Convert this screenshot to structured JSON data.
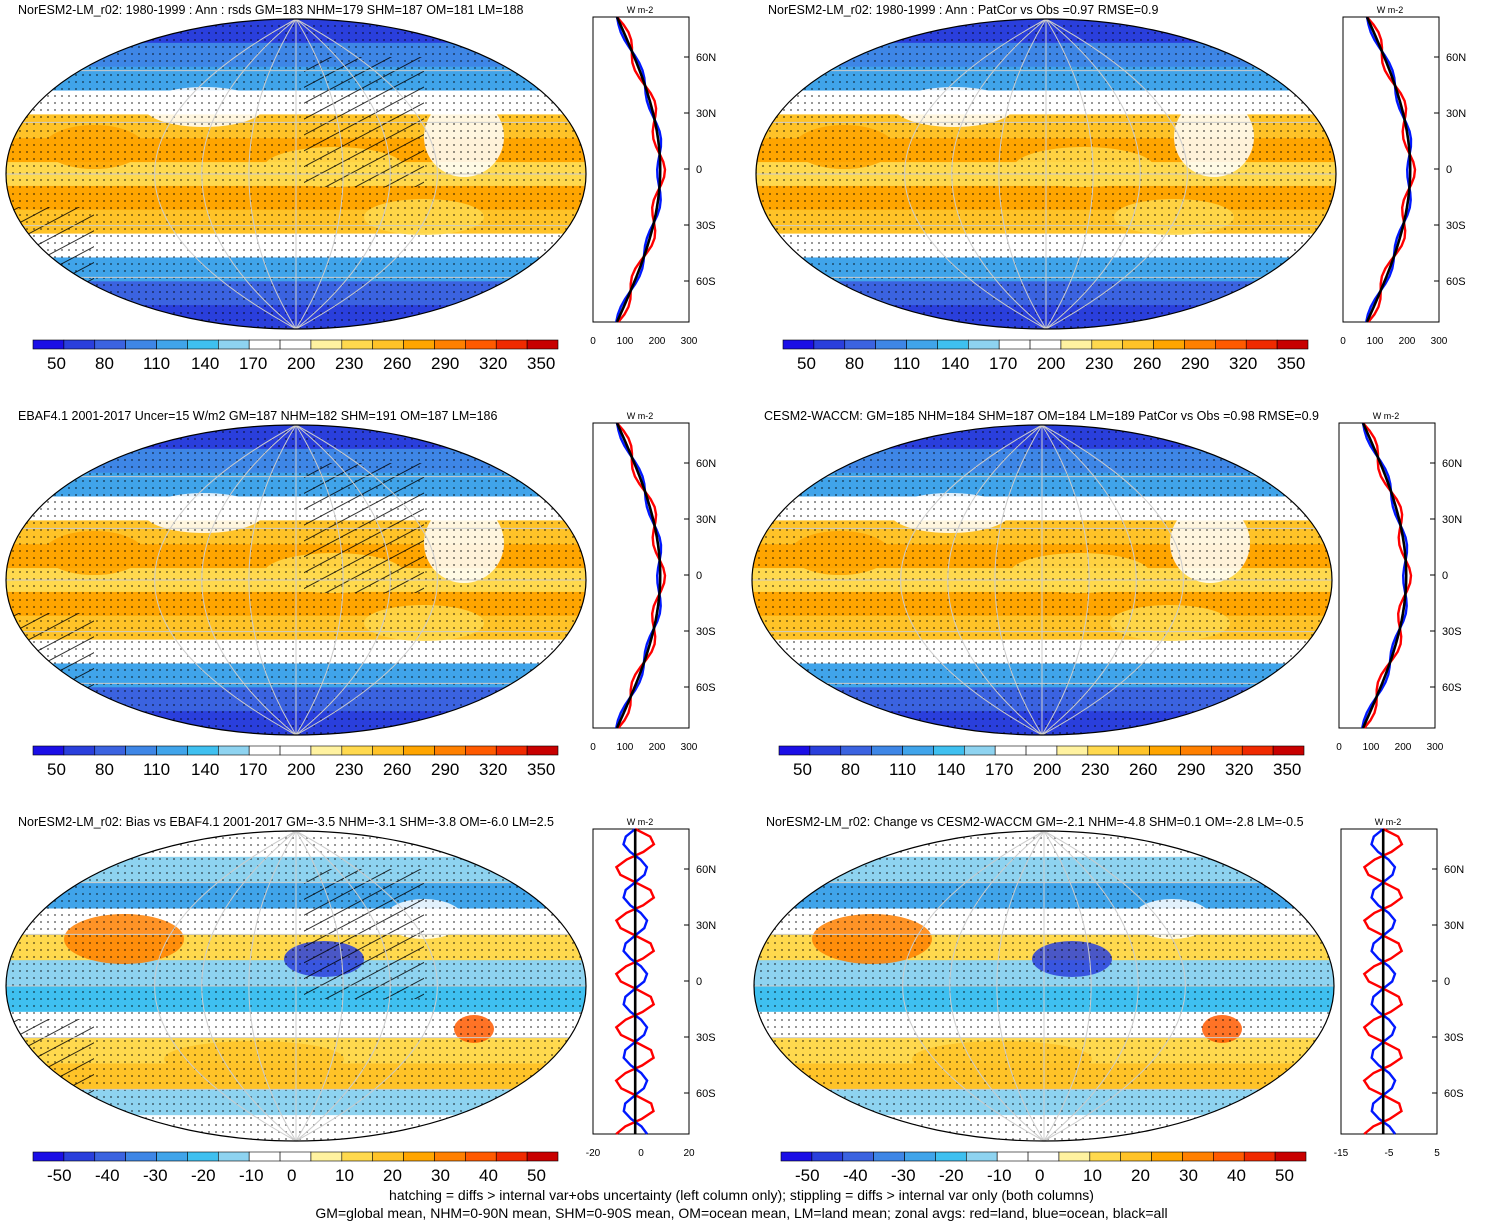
{
  "panels": [
    {
      "title": "NorESM2-LM_r02: 1980-1999 : Ann : rsds GM=183 NHM=179 SHM=187 OM=181 LM=188",
      "zonal_units": "W m-2",
      "lat_labels": [
        "60N",
        "30N",
        "0",
        "30S",
        "60S"
      ],
      "x_ticks": [
        "0",
        "100",
        "200",
        "300"
      ],
      "colorbar_labels": [
        "50",
        "80",
        "110",
        "140",
        "170",
        "200",
        "230",
        "260",
        "290",
        "320",
        "350"
      ],
      "type": "abs",
      "hatch": true
    },
    {
      "title": "NorESM2-LM_r02: 1980-1999 : Ann : PatCor vs Obs =0.97 RMSE=0.9",
      "zonal_units": "W m-2",
      "lat_labels": [
        "60N",
        "30N",
        "0",
        "30S",
        "60S"
      ],
      "x_ticks": [
        "0",
        "100",
        "200",
        "300"
      ],
      "colorbar_labels": [
        "50",
        "80",
        "110",
        "140",
        "170",
        "200",
        "230",
        "260",
        "290",
        "320",
        "350"
      ],
      "type": "abs",
      "hatch": false
    },
    {
      "title": "EBAF4.1 2001-2017 Uncer=15 W/m2 GM=187 NHM=182 SHM=191 OM=187 LM=186",
      "zonal_units": "W m-2",
      "lat_labels": [
        "60N",
        "30N",
        "0",
        "30S",
        "60S"
      ],
      "x_ticks": [
        "0",
        "100",
        "200",
        "300"
      ],
      "colorbar_labels": [
        "50",
        "80",
        "110",
        "140",
        "170",
        "200",
        "230",
        "260",
        "290",
        "320",
        "350"
      ],
      "type": "abs",
      "hatch": true
    },
    {
      "title": "CESM2-WACCM: GM=185 NHM=184 SHM=187 OM=184 LM=189 PatCor vs Obs =0.98 RMSE=0.9",
      "zonal_units": "W m-2",
      "lat_labels": [
        "60N",
        "30N",
        "0",
        "30S",
        "60S"
      ],
      "x_ticks": [
        "0",
        "100",
        "200",
        "300"
      ],
      "colorbar_labels": [
        "50",
        "80",
        "110",
        "140",
        "170",
        "200",
        "230",
        "260",
        "290",
        "320",
        "350"
      ],
      "type": "abs",
      "hatch": false
    },
    {
      "title": "NorESM2-LM_r02: Bias vs EBAF4.1 2001-2017 GM=-3.5 NHM=-3.1 SHM=-3.8 OM=-6.0 LM=2.5",
      "zonal_units": "W m-2",
      "lat_labels": [
        "60N",
        "30N",
        "0",
        "30S",
        "60S"
      ],
      "x_ticks": [
        "-20",
        "0",
        "20"
      ],
      "colorbar_labels": [
        "-50",
        "-40",
        "-30",
        "-20",
        "-10",
        "0",
        "10",
        "20",
        "30",
        "40",
        "50"
      ],
      "type": "diff",
      "hatch": true
    },
    {
      "title": "NorESM2-LM_r02: Change vs CESM2-WACCM GM=-2.1 NHM=-4.8 SHM=0.1 OM=-2.8 LM=-0.5",
      "zonal_units": "W m-2",
      "lat_labels": [
        "60N",
        "30N",
        "0",
        "30S",
        "60S"
      ],
      "x_ticks": [
        "-15",
        "-5",
        "5"
      ],
      "colorbar_labels": [
        "-50",
        "-40",
        "-30",
        "-20",
        "-10",
        "0",
        "10",
        "20",
        "30",
        "40",
        "50"
      ],
      "type": "diff",
      "hatch": false
    }
  ],
  "footer": {
    "line1": "hatching = diffs > internal var+obs uncertainty (left column only); stippling = diffs > internal var only (both columns)",
    "line2": "GM=global mean, NHM=0-90N mean, SHM=0-90S mean, OM=ocean mean, LM=land mean; zonal avgs: red=land, blue=ocean, black=all"
  },
  "palette": {
    "abs": [
      "#1b0ee6",
      "#2a3fdc",
      "#3b63e0",
      "#3e86e6",
      "#40a4ea",
      "#3fc0f0",
      "#8ed3f0",
      "#ffffff",
      "#ffffff",
      "#fff2a0",
      "#ffd94e",
      "#ffc328",
      "#ffa500",
      "#ff8000",
      "#ff5a00",
      "#f02a00",
      "#c80000"
    ],
    "diff": [
      "#1b0ee6",
      "#2a3fdc",
      "#3b63e0",
      "#3e86e6",
      "#40a4ea",
      "#3fc0f0",
      "#8ed3f0",
      "#ffffff",
      "#ffffff",
      "#fff2a0",
      "#ffd94e",
      "#ffc328",
      "#ffa500",
      "#ff8000",
      "#ff5a00",
      "#f02a00",
      "#c80000"
    ]
  }
}
